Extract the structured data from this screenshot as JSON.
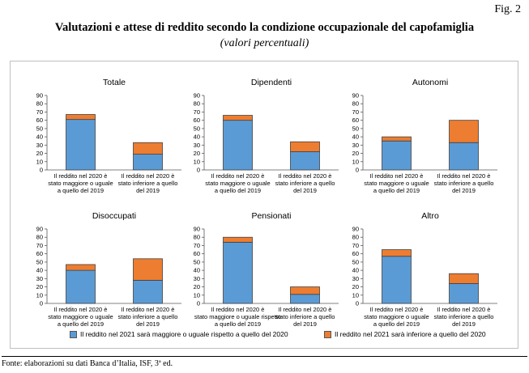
{
  "figure": {
    "label": "Fig. 2"
  },
  "title": "Valutazioni e attese di reddito secondo la condizione occupazionale del capofamiglia",
  "subtitle": "(valori percentuali)",
  "source": "Fonte: elaborazioni su dati Banca d’Italia, ISF, 3ª ed.",
  "legend": [
    {
      "label": "Il reddito nel 2021 sarà maggiore o uguale rispetto a quello del 2020",
      "color": "#5b9bd5"
    },
    {
      "label": "Il reddito nel 2021 sarà inferiore a quello del 2020",
      "color": "#ed7d31"
    }
  ],
  "chart_data": [
    {
      "type": "bar",
      "stacked": true,
      "title": "Totale",
      "categories": [
        [
          "Il reddito nel 2020 è",
          "stato maggiore o uguale",
          "a quello del 2019"
        ],
        [
          "Il reddito nel 2020 è",
          "stato inferiore a quello",
          "del 2019"
        ]
      ],
      "series": [
        {
          "name": "Il reddito nel 2021 sarà maggiore o uguale rispetto a quello del 2020",
          "values": [
            61,
            19
          ]
        },
        {
          "name": "Il reddito nel 2021 sarà inferiore a quello del 2020",
          "values": [
            6,
            14
          ]
        }
      ],
      "ylim": [
        0,
        90
      ],
      "yticks": [
        0,
        10,
        20,
        30,
        40,
        50,
        60,
        70,
        80,
        90
      ]
    },
    {
      "type": "bar",
      "stacked": true,
      "title": "Dipendenti",
      "categories": [
        [
          "Il reddito nel 2020 è",
          "stato maggiore o uguale",
          "a quello del 2019"
        ],
        [
          "Il reddito nel 2020 è",
          "stato inferiore a quello",
          "del 2019"
        ]
      ],
      "series": [
        {
          "name": "Il reddito nel 2021 sarà maggiore o uguale rispetto a quello del 2020",
          "values": [
            60,
            22
          ]
        },
        {
          "name": "Il reddito nel 2021 sarà inferiore a quello del 2020",
          "values": [
            6,
            12
          ]
        }
      ],
      "ylim": [
        0,
        90
      ],
      "yticks": [
        0,
        10,
        20,
        30,
        40,
        50,
        60,
        70,
        80,
        90
      ]
    },
    {
      "type": "bar",
      "stacked": true,
      "title": "Autonomi",
      "categories": [
        [
          "Il reddito nel 2020 è",
          "stato maggiore o uguale",
          "a quello del 2019"
        ],
        [
          "Il reddito nel 2020 è",
          "stato inferiore a quello",
          "del 2019"
        ]
      ],
      "series": [
        {
          "name": "Il reddito nel 2021 sarà maggiore o uguale rispetto a quello del 2020",
          "values": [
            35,
            33
          ]
        },
        {
          "name": "Il reddito nel 2021 sarà inferiore a quello del 2020",
          "values": [
            5,
            27
          ]
        }
      ],
      "ylim": [
        0,
        90
      ],
      "yticks": [
        0,
        10,
        20,
        30,
        40,
        50,
        60,
        70,
        80,
        90
      ]
    },
    {
      "type": "bar",
      "stacked": true,
      "title": "Disoccupati",
      "categories": [
        [
          "Il reddito nel 2020 è",
          "stato maggiore o uguale",
          "a quello del 2019"
        ],
        [
          "Il reddito nel 2020 è",
          "stato inferiore a quello",
          "del 2019"
        ]
      ],
      "series": [
        {
          "name": "Il reddito nel 2021 sarà maggiore o uguale rispetto a quello del 2020",
          "values": [
            40,
            28
          ]
        },
        {
          "name": "Il reddito nel 2021 sarà inferiore a quello del 2020",
          "values": [
            7,
            26
          ]
        }
      ],
      "ylim": [
        0,
        90
      ],
      "yticks": [
        0,
        10,
        20,
        30,
        40,
        50,
        60,
        70,
        80,
        90
      ]
    },
    {
      "type": "bar",
      "stacked": true,
      "title": "Pensionati",
      "categories": [
        [
          "Il reddito nel 2020 è",
          "stato maggiore o uguale rispetto",
          "a quello del 2019"
        ],
        [
          "Il reddito nel 2020 è",
          "stato inferiore a quello",
          "del 2019"
        ]
      ],
      "series": [
        {
          "name": "Il reddito nel 2021 sarà maggiore o uguale rispetto a quello del 2020",
          "values": [
            74,
            11
          ]
        },
        {
          "name": "Il reddito nel 2021 sarà inferiore a quello del 2020",
          "values": [
            6,
            9
          ]
        }
      ],
      "ylim": [
        0,
        90
      ],
      "yticks": [
        0,
        10,
        20,
        30,
        40,
        50,
        60,
        70,
        80,
        90
      ]
    },
    {
      "type": "bar",
      "stacked": true,
      "title": "Altro",
      "categories": [
        [
          "Il reddito nel 2020 è",
          "stato maggiore o uguale",
          "a quello del 2019"
        ],
        [
          "Il reddito nel 2020 è",
          "stato inferiore a quello",
          "del 2019"
        ]
      ],
      "series": [
        {
          "name": "Il reddito nel 2021 sarà maggiore o uguale rispetto a quello del 2020",
          "values": [
            57,
            24
          ]
        },
        {
          "name": "Il reddito nel 2021 sarà inferiore a quello del 2020",
          "values": [
            8,
            12
          ]
        }
      ],
      "ylim": [
        0,
        90
      ],
      "yticks": [
        0,
        10,
        20,
        30,
        40,
        50,
        60,
        70,
        80,
        90
      ]
    }
  ]
}
